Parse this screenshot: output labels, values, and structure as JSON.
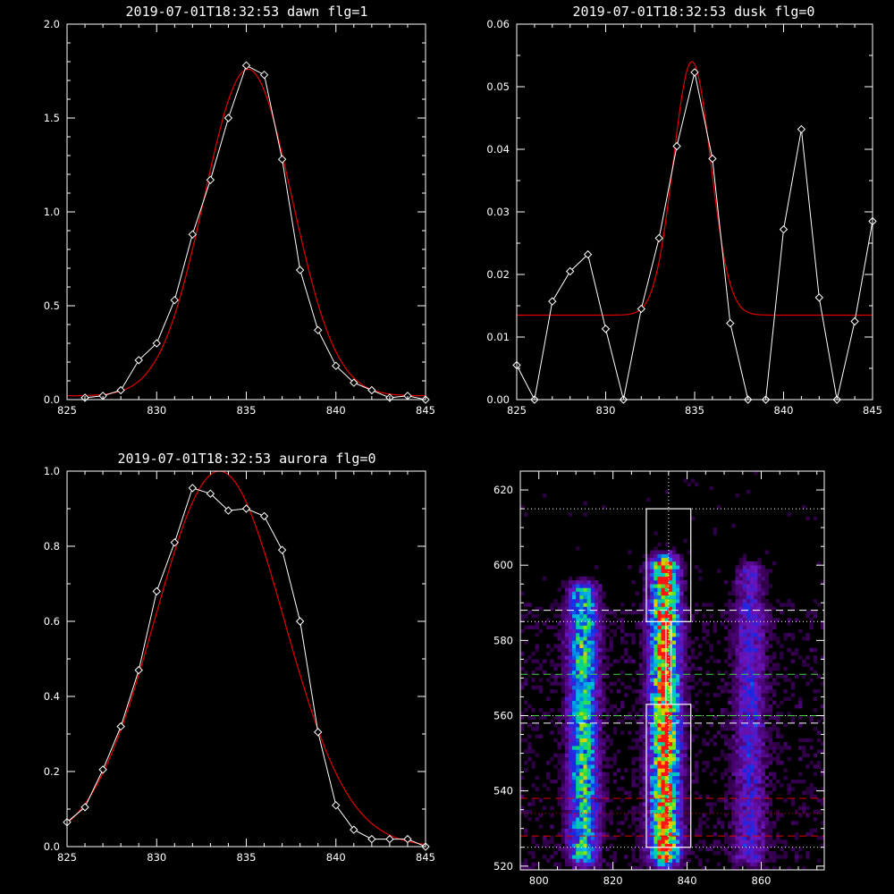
{
  "chart_data": [
    {
      "type": "line",
      "title": "2019-07-01T18:32:53 dawn flg=1",
      "xlim": [
        825,
        845
      ],
      "ylim": [
        0,
        2.0
      ],
      "xticks": [
        "825",
        "830",
        "835",
        "840",
        "845"
      ],
      "yticks": [
        "0.0",
        "0.5",
        "1.0",
        "1.5",
        "2.0"
      ],
      "series": [
        {
          "style": "white line with diamond markers",
          "x": [
            826,
            827,
            828,
            829,
            830,
            831,
            832,
            833,
            834,
            835,
            836,
            837,
            838,
            839,
            840,
            841,
            842,
            843,
            844,
            845
          ],
          "y": [
            0.01,
            0.02,
            0.05,
            0.21,
            0.3,
            0.53,
            0.88,
            1.17,
            1.5,
            1.78,
            1.73,
            1.28,
            0.69,
            0.37,
            0.18,
            0.09,
            0.05,
            0.01,
            0.02,
            0.0
          ]
        },
        {
          "style": "red gaussian fit",
          "gauss": {
            "amplitude": 1.74,
            "center": 835.1,
            "sigma": 2.45,
            "offset": 0.02
          }
        }
      ],
      "colors": {
        "observed": "#ffffff",
        "fit": "#e00000"
      }
    },
    {
      "type": "line",
      "title": "2019-07-01T18:32:53 dusk flg=0",
      "xlim": [
        825,
        845
      ],
      "ylim": [
        0,
        0.06
      ],
      "xticks": [
        "825",
        "830",
        "835",
        "840",
        "845"
      ],
      "yticks": [
        "0.00",
        "0.01",
        "0.02",
        "0.03",
        "0.04",
        "0.05",
        "0.06"
      ],
      "series": [
        {
          "style": "white line with diamond markers",
          "x": [
            825,
            826,
            827,
            828,
            829,
            830,
            831,
            832,
            833,
            834,
            835,
            836,
            837,
            838,
            839,
            840,
            841,
            842,
            843,
            844,
            845
          ],
          "y": [
            0.0055,
            0.0,
            0.0157,
            0.0205,
            0.0232,
            0.0113,
            0.0,
            0.0145,
            0.0258,
            0.0405,
            0.0523,
            0.0385,
            0.0122,
            0.0,
            0.0,
            0.0272,
            0.0432,
            0.0163,
            0.0,
            0.0125,
            0.0285
          ]
        },
        {
          "style": "red gaussian fit",
          "gauss": {
            "amplitude": 0.0405,
            "center": 834.85,
            "sigma": 1.05,
            "offset": 0.0135
          }
        }
      ],
      "colors": {
        "observed": "#ffffff",
        "fit": "#e00000"
      }
    },
    {
      "type": "line",
      "title": "2019-07-01T18:32:53 aurora flg=0",
      "xlim": [
        825,
        845
      ],
      "ylim": [
        0,
        1.0
      ],
      "xticks": [
        "825",
        "830",
        "835",
        "840",
        "845"
      ],
      "yticks": [
        "0.0",
        "0.2",
        "0.4",
        "0.6",
        "0.8",
        "1.0"
      ],
      "series": [
        {
          "style": "white line with diamond markers",
          "x": [
            825,
            826,
            827,
            828,
            829,
            830,
            831,
            832,
            833,
            834,
            835,
            836,
            837,
            838,
            839,
            840,
            841,
            842,
            843,
            844,
            845
          ],
          "y": [
            0.065,
            0.105,
            0.205,
            0.32,
            0.47,
            0.68,
            0.81,
            0.955,
            0.94,
            0.895,
            0.9,
            0.88,
            0.79,
            0.6,
            0.305,
            0.11,
            0.045,
            0.02,
            0.02,
            0.02,
            0.0
          ]
        },
        {
          "style": "red gaussian fit",
          "gauss": {
            "amplitude": 1.0,
            "center": 833.5,
            "sigma": 3.6,
            "offset": 0.0
          }
        }
      ],
      "colors": {
        "observed": "#ffffff",
        "fit": "#e00000"
      }
    },
    {
      "type": "heatmap",
      "title": "",
      "xlim": [
        795,
        877
      ],
      "ylim": [
        519,
        625
      ],
      "xticks": [
        "800",
        "820",
        "840",
        "860"
      ],
      "yticks": [
        "520",
        "540",
        "560",
        "580",
        "600",
        "620"
      ],
      "colormap": "rainbow (black-purple-blue-cyan-green-yellow-red)",
      "emission_columns": [
        {
          "center": 812,
          "rows": [
            523,
            593
          ],
          "peak": 0.62
        },
        {
          "center": 834,
          "rows": [
            523,
            600
          ],
          "peak": 1.0
        },
        {
          "center": 857,
          "rows": [
            523,
            598
          ],
          "peak": 0.28
        }
      ],
      "overlays": {
        "vertical_dotted_x": 835,
        "boxes": [
          {
            "x": [
              829,
              841
            ],
            "y": [
              585,
              615
            ],
            "color": "#ffffff"
          },
          {
            "x": [
              829,
              841
            ],
            "y": [
              525,
              563
            ],
            "color": "#ffffff"
          }
        ],
        "white_dotted_y": [
          615,
          585,
          560,
          525
        ],
        "white_dashed_y": [
          588,
          558
        ],
        "green_dashed_y": [
          571,
          560
        ],
        "red_dashed_y": [
          538,
          528
        ],
        "red_dotted_y": [
          534
        ]
      }
    }
  ]
}
